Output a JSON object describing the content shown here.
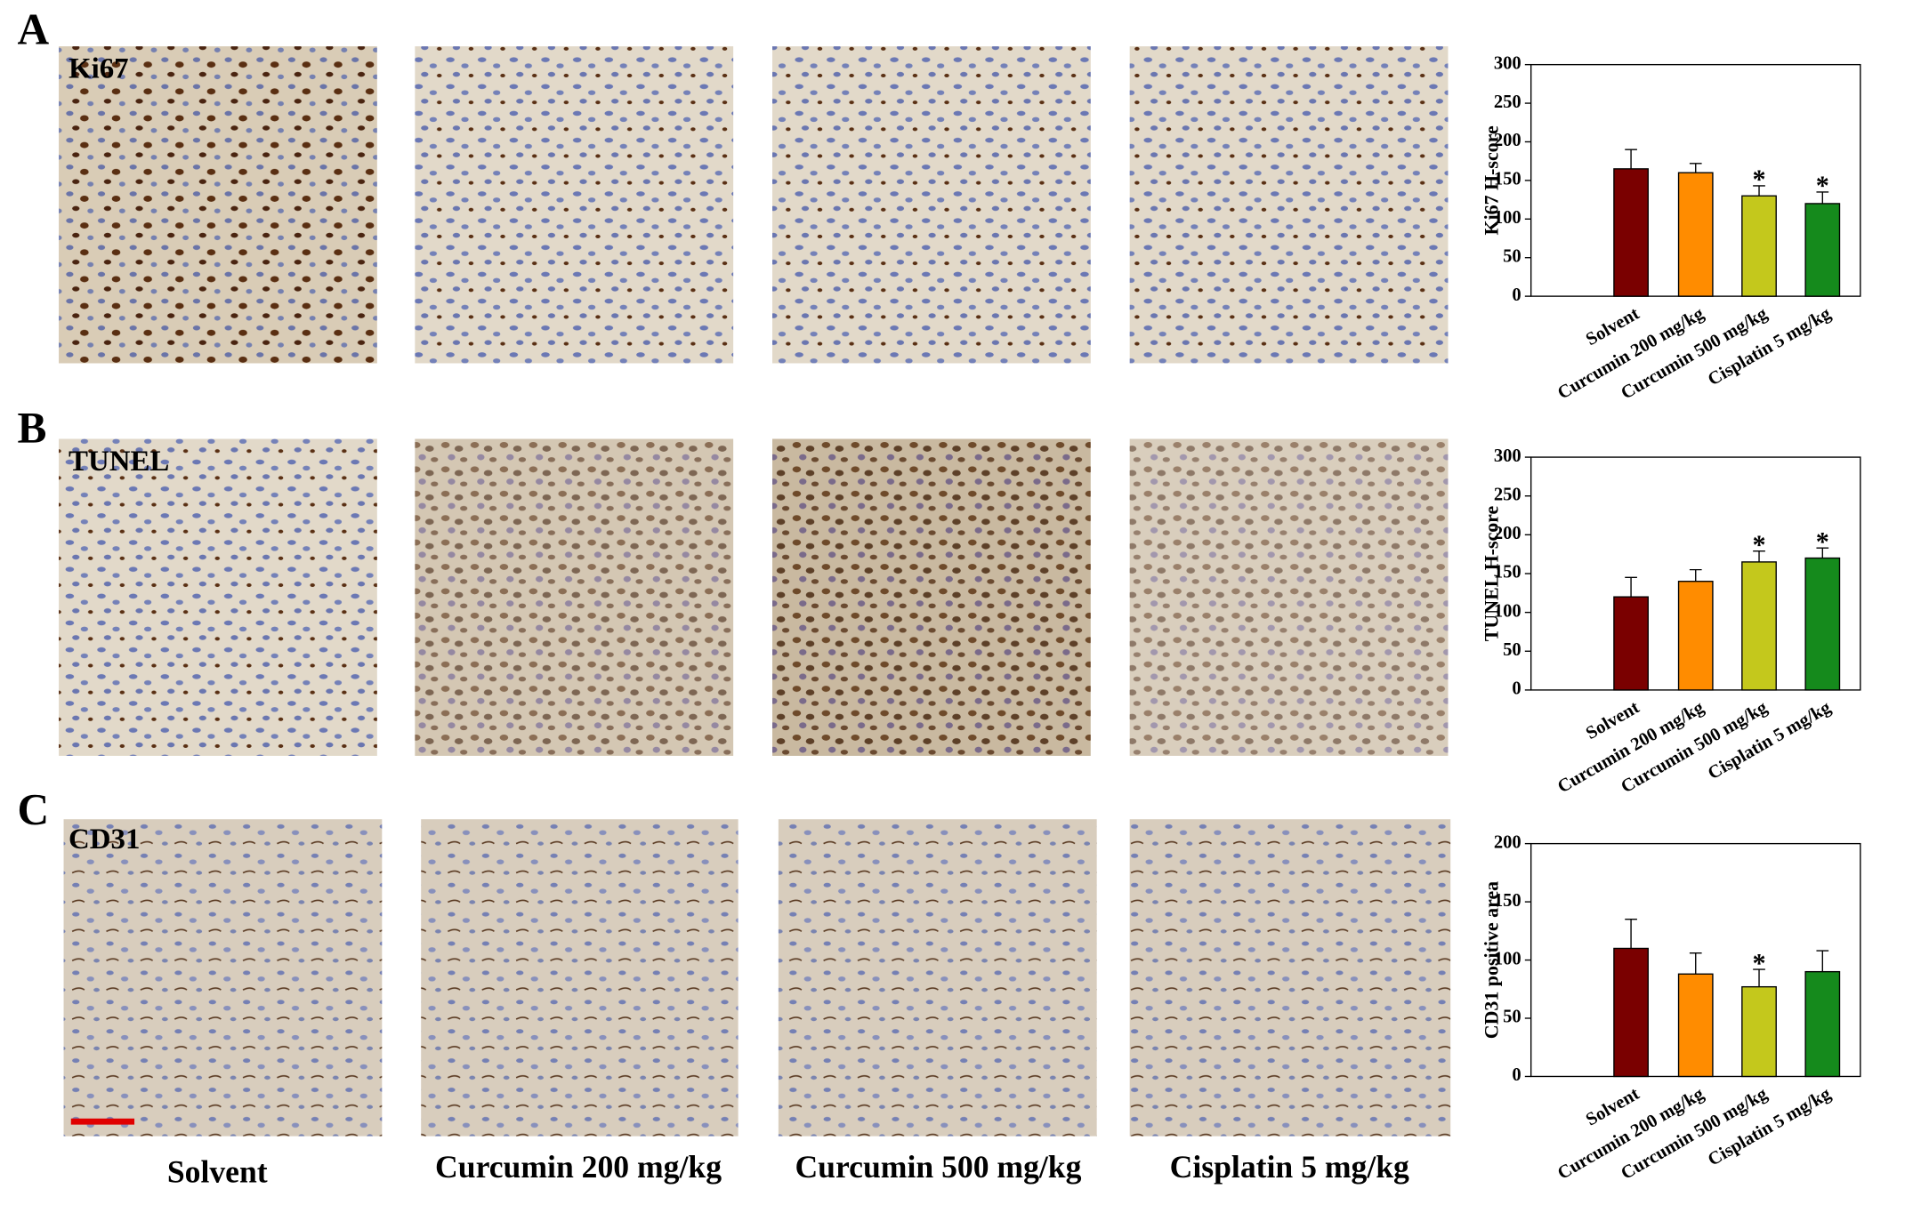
{
  "panels": [
    "A",
    "B",
    "C"
  ],
  "stain_labels": [
    "Ki67",
    "TUNEL",
    "CD31"
  ],
  "group_labels": [
    "Solvent",
    "Curcumin 200 mg/kg",
    "Curcumin 500 mg/kg",
    "Cisplatin 5 mg/kg"
  ],
  "chart_data": [
    {
      "type": "bar",
      "y_label": "Ki67 H-score",
      "categories": [
        "Solvent",
        "Curcumin 200 mg/kg",
        "Curcumin 500 mg/kg",
        "Cisplatin 5 mg/kg"
      ],
      "values": [
        165,
        160,
        130,
        120
      ],
      "errors": [
        25,
        12,
        13,
        15
      ],
      "colors": [
        "#7a0000",
        "#ff8c00",
        "#c4c81c",
        "#158a1c"
      ],
      "significance": [
        null,
        null,
        "*",
        "*"
      ],
      "ylim": [
        0,
        300
      ],
      "yticks": [
        0,
        50,
        100,
        150,
        200,
        250,
        300
      ]
    },
    {
      "type": "bar",
      "y_label": "TUNEL  H-score",
      "categories": [
        "Solvent",
        "Curcumin 200 mg/kg",
        "Curcumin 500 mg/kg",
        "Cisplatin 5 mg/kg"
      ],
      "values": [
        120,
        140,
        165,
        170
      ],
      "errors": [
        25,
        15,
        14,
        13
      ],
      "colors": [
        "#7a0000",
        "#ff8c00",
        "#c4c81c",
        "#158a1c"
      ],
      "significance": [
        null,
        null,
        "*",
        "*"
      ],
      "ylim": [
        0,
        300
      ],
      "yticks": [
        0,
        50,
        100,
        150,
        200,
        250,
        300
      ]
    },
    {
      "type": "bar",
      "y_label": "CD31 positive area",
      "categories": [
        "Solvent",
        "Curcumin 200 mg/kg",
        "Curcumin 500 mg/kg",
        "Cisplatin 5 mg/kg"
      ],
      "values": [
        110,
        88,
        77,
        90
      ],
      "errors": [
        25,
        18,
        15,
        18
      ],
      "colors": [
        "#7a0000",
        "#ff8c00",
        "#c4c81c",
        "#158a1c"
      ],
      "significance": [
        null,
        null,
        "*",
        null
      ],
      "ylim": [
        0,
        200
      ],
      "yticks": [
        0,
        50,
        100,
        150,
        200
      ]
    }
  ]
}
